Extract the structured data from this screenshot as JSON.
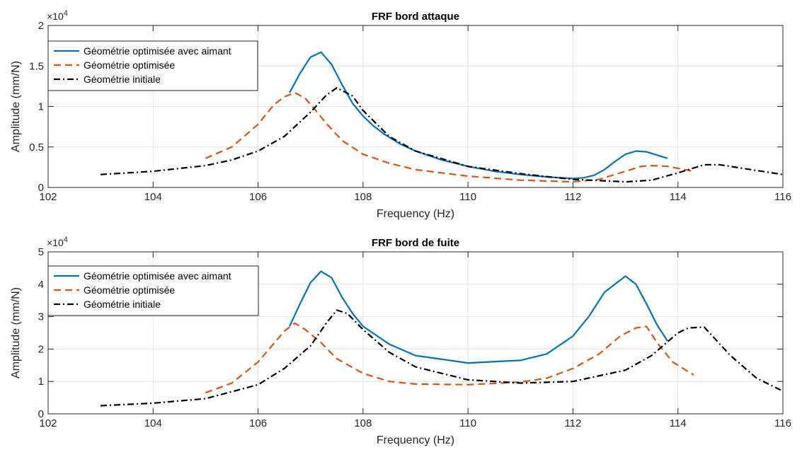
{
  "chart_data": [
    {
      "type": "line",
      "title": "FRF bord attaque",
      "xlabel": "Frequency (Hz)",
      "ylabel": "Amplitude (mm/N)",
      "exponent_label": "×10",
      "exponent_power": "4",
      "xlim": [
        102,
        116
      ],
      "ylim": [
        0,
        2
      ],
      "xticks": [
        "102",
        "104",
        "106",
        "108",
        "110",
        "112",
        "114",
        "116"
      ],
      "yticks": [
        "0",
        "0.5",
        "1",
        "1.5",
        "2"
      ],
      "grid": true,
      "legend_position": "top-left",
      "series": [
        {
          "name": "Géométrie optimisée avec aimant",
          "color": "#0072bd",
          "dash": "solid",
          "x": [
            106.6,
            106.8,
            107.0,
            107.2,
            107.4,
            107.6,
            107.8,
            108.0,
            108.2,
            108.4,
            108.7,
            109.0,
            109.5,
            110.0,
            110.5,
            111.0,
            111.5,
            112.0,
            112.2,
            112.4,
            112.6,
            112.8,
            113.0,
            113.2,
            113.4,
            113.8
          ],
          "y": [
            1.17,
            1.41,
            1.61,
            1.67,
            1.52,
            1.27,
            1.04,
            0.88,
            0.76,
            0.66,
            0.54,
            0.45,
            0.34,
            0.26,
            0.2,
            0.16,
            0.13,
            0.11,
            0.12,
            0.15,
            0.22,
            0.32,
            0.41,
            0.45,
            0.44,
            0.36
          ]
        },
        {
          "name": "Géométrie optimisée",
          "color": "#d95319",
          "dash": "dashed",
          "x": [
            105.0,
            105.5,
            106.0,
            106.3,
            106.5,
            106.7,
            106.9,
            107.1,
            107.3,
            107.6,
            108.0,
            108.5,
            109.0,
            110.0,
            111.0,
            112.0,
            112.5,
            113.0,
            113.3,
            113.5,
            113.8,
            114.3
          ],
          "y": [
            0.36,
            0.5,
            0.78,
            1.02,
            1.12,
            1.17,
            1.1,
            0.95,
            0.79,
            0.58,
            0.41,
            0.3,
            0.22,
            0.14,
            0.09,
            0.07,
            0.1,
            0.2,
            0.26,
            0.27,
            0.26,
            0.2
          ]
        },
        {
          "name": "Géométrie initiale",
          "color": "#000000",
          "dash": "dashdot",
          "x": [
            103.0,
            104.0,
            105.0,
            105.5,
            106.0,
            106.5,
            107.0,
            107.3,
            107.5,
            107.8,
            108.0,
            108.5,
            109.0,
            110.0,
            111.0,
            112.0,
            113.0,
            113.5,
            114.0,
            114.5,
            114.8,
            115.5,
            116.0
          ],
          "y": [
            0.16,
            0.2,
            0.27,
            0.34,
            0.45,
            0.63,
            0.93,
            1.14,
            1.23,
            1.13,
            0.95,
            0.63,
            0.45,
            0.26,
            0.17,
            0.1,
            0.07,
            0.09,
            0.18,
            0.28,
            0.28,
            0.21,
            0.16
          ]
        }
      ]
    },
    {
      "type": "line",
      "title": "FRF bord de fuite",
      "xlabel": "Frequency (Hz)",
      "ylabel": "Amplitude (mm/N)",
      "exponent_label": "×10",
      "exponent_power": "4",
      "xlim": [
        102,
        116
      ],
      "ylim": [
        0,
        5
      ],
      "xticks": [
        "102",
        "104",
        "106",
        "108",
        "110",
        "112",
        "114",
        "116"
      ],
      "yticks": [
        "0",
        "1",
        "2",
        "3",
        "4",
        "5"
      ],
      "grid": true,
      "legend_position": "top-left",
      "series": [
        {
          "name": "Géométrie optimisée avec aimant",
          "color": "#0072bd",
          "dash": "solid",
          "x": [
            106.6,
            106.8,
            107.0,
            107.2,
            107.4,
            107.6,
            107.8,
            108.0,
            108.5,
            109.0,
            110.0,
            111.0,
            111.5,
            112.0,
            112.3,
            112.6,
            112.8,
            113.0,
            113.2,
            113.4,
            113.6,
            113.8
          ],
          "y": [
            2.7,
            3.4,
            4.05,
            4.4,
            4.2,
            3.6,
            3.1,
            2.7,
            2.15,
            1.8,
            1.57,
            1.65,
            1.85,
            2.4,
            3.0,
            3.75,
            4.0,
            4.25,
            4.0,
            3.4,
            2.75,
            2.25
          ]
        },
        {
          "name": "Géométrie optimisée",
          "color": "#d95319",
          "dash": "dashed",
          "x": [
            105.0,
            105.5,
            106.0,
            106.5,
            106.7,
            106.9,
            107.2,
            107.5,
            108.0,
            108.5,
            109.0,
            110.0,
            111.0,
            111.5,
            112.0,
            112.5,
            112.9,
            113.2,
            113.4,
            113.6,
            113.9,
            114.3
          ],
          "y": [
            0.65,
            0.95,
            1.6,
            2.55,
            2.8,
            2.6,
            2.2,
            1.7,
            1.25,
            1.0,
            0.92,
            0.9,
            0.98,
            1.1,
            1.4,
            1.85,
            2.4,
            2.65,
            2.7,
            2.2,
            1.6,
            1.2
          ]
        },
        {
          "name": "Géométrie initiale",
          "color": "#000000",
          "dash": "dashdot",
          "x": [
            103.0,
            104.0,
            105.0,
            106.0,
            106.5,
            107.0,
            107.3,
            107.5,
            107.7,
            108.0,
            108.5,
            109.0,
            110.0,
            111.0,
            112.0,
            113.0,
            113.5,
            114.0,
            114.2,
            114.5,
            115.0,
            115.5,
            116.0
          ],
          "y": [
            0.25,
            0.33,
            0.47,
            0.9,
            1.4,
            2.1,
            2.8,
            3.2,
            3.1,
            2.6,
            1.9,
            1.45,
            1.05,
            0.95,
            1.0,
            1.35,
            1.8,
            2.5,
            2.65,
            2.68,
            1.8,
            1.1,
            0.7
          ]
        }
      ]
    }
  ]
}
